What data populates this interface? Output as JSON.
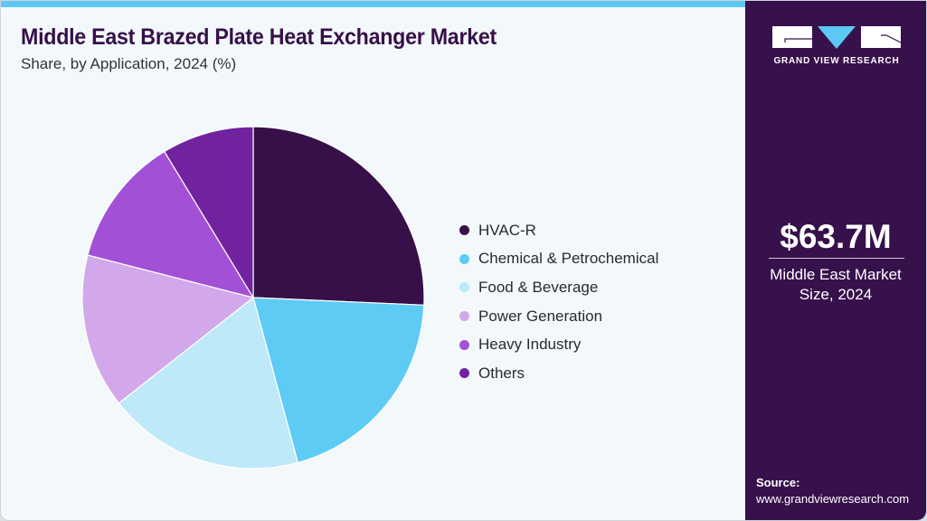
{
  "header": {
    "title": "Middle East Brazed Plate Heat Exchanger Market",
    "subtitle": "Share, by Application, 2024 (%)"
  },
  "colors": {
    "accent_bar": "#5dc8f4",
    "side_panel": "#37114b",
    "title": "#361048",
    "background": "#f3f8fb"
  },
  "legend": [
    {
      "label": "HVAC-R",
      "color": "#371049"
    },
    {
      "label": "Chemical & Petrochemical",
      "color": "#5ecbf5"
    },
    {
      "label": "Food & Beverage",
      "color": "#bde9f9"
    },
    {
      "label": "Power Generation",
      "color": "#d3a8eb"
    },
    {
      "label": "Heavy Industry",
      "color": "#a251d6"
    },
    {
      "label": "Others",
      "color": "#70229f"
    }
  ],
  "side_panel": {
    "brand": "GRAND VIEW RESEARCH",
    "market_value": "$63.7M",
    "market_label_line1": "Middle East Market",
    "market_label_line2": "Size, 2024",
    "source_label": "Source:",
    "source_url": "www.grandviewresearch.com"
  },
  "chart_data": {
    "type": "pie",
    "title": "Middle East Brazed Plate Heat Exchanger Market",
    "subtitle": "Share, by Application, 2024 (%)",
    "categories": [
      "HVAC-R",
      "Chemical & Petrochemical",
      "Food & Beverage",
      "Power Generation",
      "Heavy Industry",
      "Others"
    ],
    "values": [
      25.7,
      20.1,
      18.6,
      14.6,
      12.3,
      8.7
    ],
    "colors": [
      "#371049",
      "#5ecbf5",
      "#bde9f9",
      "#d3a8eb",
      "#a251d6",
      "#70229f"
    ],
    "start_angle": "12 o'clock",
    "direction": "clockwise",
    "legend_position": "right",
    "data_labels": false
  }
}
